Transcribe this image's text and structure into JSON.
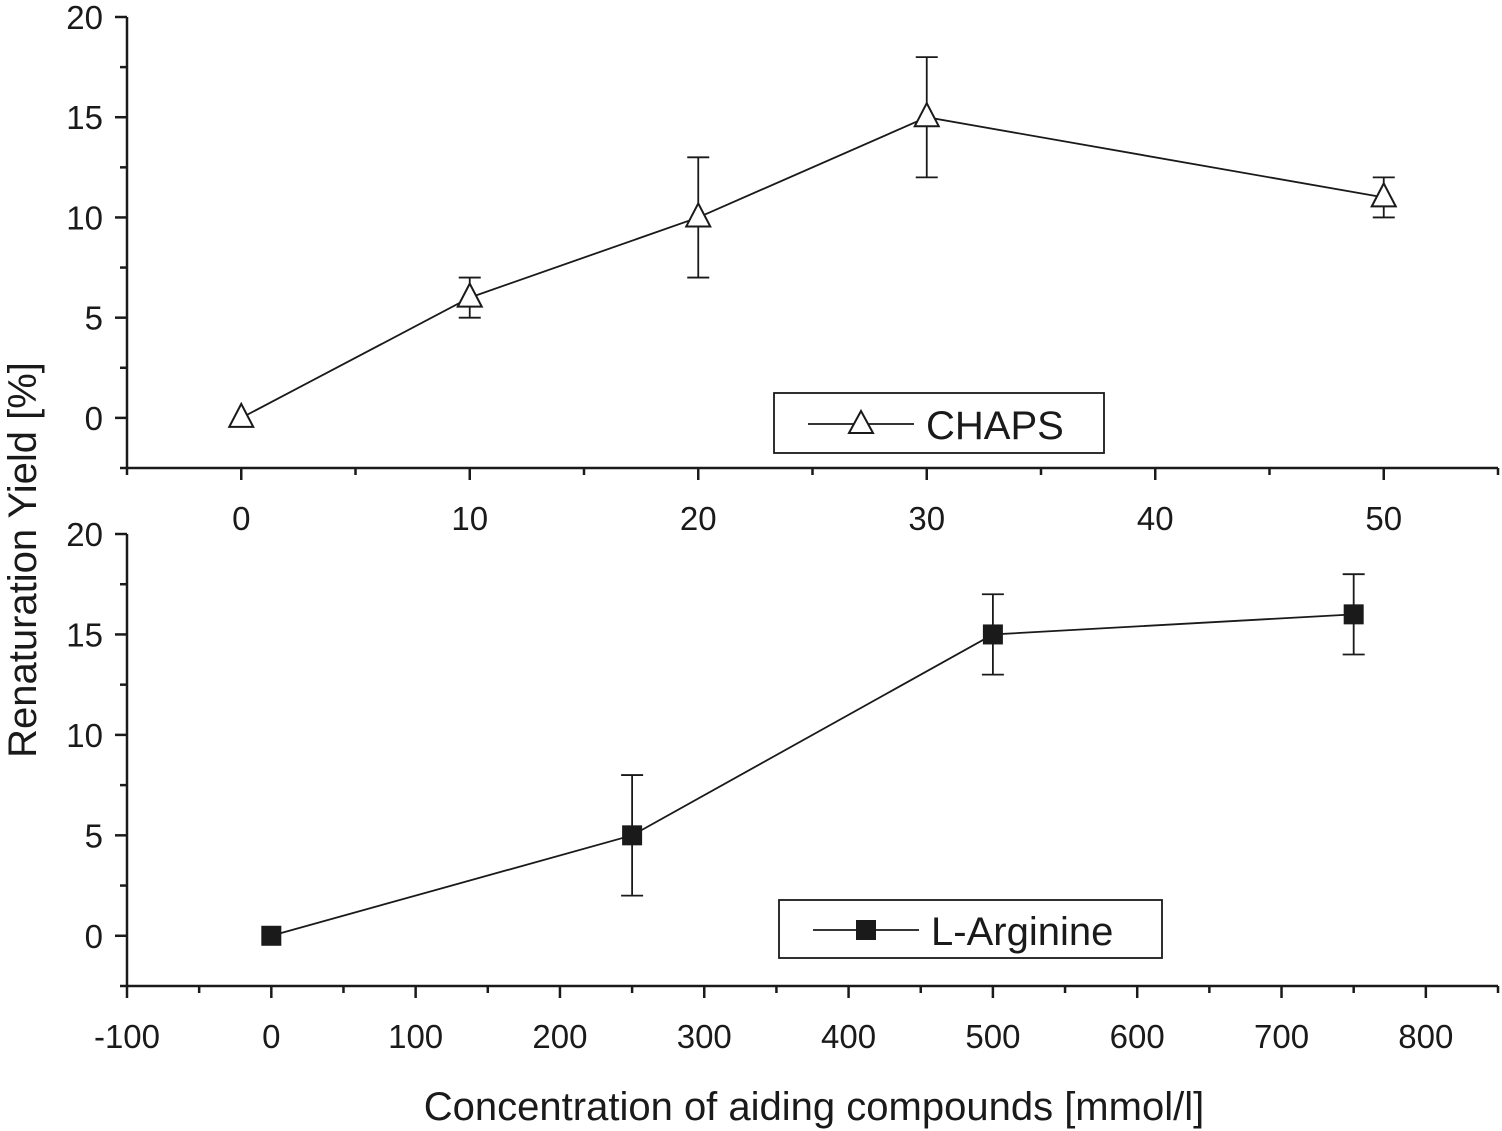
{
  "ylabel": "Renaturation Yield [%]",
  "xlabel": "Concentration of aiding compounds [mmol/l]",
  "chart_data": [
    {
      "type": "line",
      "series": [
        {
          "name": "CHAPS",
          "marker": "open-triangle",
          "x": [
            0,
            10,
            20,
            30,
            50
          ],
          "y": [
            0,
            6,
            10,
            15,
            11
          ],
          "err_low": [
            0,
            5,
            7,
            12,
            10
          ],
          "err_high": [
            0,
            7,
            13,
            18,
            12
          ]
        }
      ],
      "xlim": [
        -5,
        55
      ],
      "ylim": [
        -2.5,
        20
      ],
      "xticks": [
        0,
        10,
        20,
        30,
        40,
        50
      ],
      "yticks": [
        0,
        5,
        10,
        15,
        20
      ],
      "legend": "bottom-right",
      "grid": false
    },
    {
      "type": "line",
      "series": [
        {
          "name": "L-Arginine",
          "marker": "filled-square",
          "x": [
            0,
            250,
            500,
            750
          ],
          "y": [
            0,
            5,
            15,
            16
          ],
          "err_low": [
            0,
            2,
            13,
            14
          ],
          "err_high": [
            0,
            8,
            17,
            18
          ]
        }
      ],
      "xlim": [
        -100,
        850
      ],
      "ylim": [
        -2.5,
        20
      ],
      "xticks": [
        -100,
        0,
        100,
        200,
        300,
        400,
        500,
        600,
        700,
        800
      ],
      "yticks": [
        0,
        5,
        10,
        15,
        20
      ],
      "legend": "bottom-right",
      "grid": false
    }
  ]
}
